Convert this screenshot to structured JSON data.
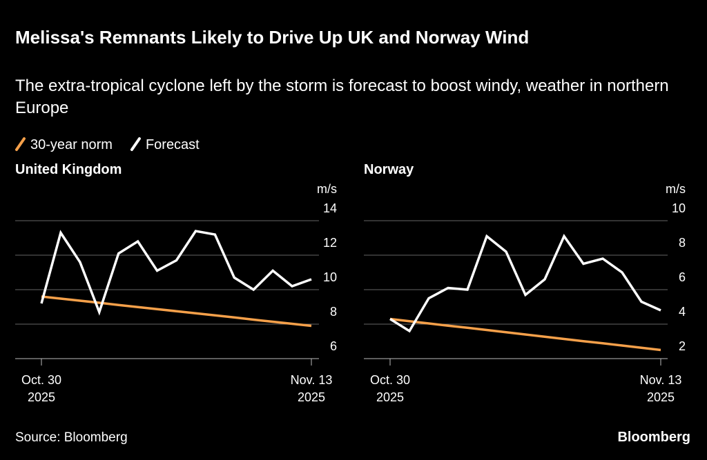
{
  "header": {
    "title": "Melissa's Remnants Likely to Drive Up UK and Norway Wind",
    "subtitle": "The extra-tropical cyclone left by the storm is forecast to boost windy, weather in northern Europe"
  },
  "footer": {
    "source": "Source: Bloomberg",
    "brand": "Bloomberg"
  },
  "chart_data": [
    {
      "type": "line",
      "title": "United Kingdom",
      "y_unit": "m/s",
      "categories": [
        "Oct. 30 2025",
        null,
        null,
        null,
        null,
        null,
        null,
        null,
        null,
        null,
        null,
        null,
        null,
        null,
        "Nov. 13 2025"
      ],
      "series": [
        {
          "name": "30-year norm",
          "color": "#f5a04a",
          "values": [
            9.6,
            9.48,
            9.36,
            9.24,
            9.11,
            8.99,
            8.87,
            8.75,
            8.63,
            8.51,
            8.39,
            8.26,
            8.14,
            8.02,
            7.9
          ]
        },
        {
          "name": "Forecast",
          "color": "#ffffff",
          "values": [
            9.2,
            13.3,
            11.6,
            8.7,
            12.1,
            12.8,
            11.1,
            11.7,
            13.4,
            13.2,
            10.7,
            10.0,
            11.1,
            10.2,
            10.6
          ]
        }
      ],
      "ylim": [
        6,
        14
      ],
      "yticks": [
        6,
        8,
        10,
        12,
        14
      ],
      "grid": true
    },
    {
      "type": "line",
      "title": "Norway",
      "y_unit": "m/s",
      "categories": [
        "Oct. 30 2025",
        null,
        null,
        null,
        null,
        null,
        null,
        null,
        null,
        null,
        null,
        null,
        null,
        null,
        "Nov. 13 2025"
      ],
      "series": [
        {
          "name": "30-year norm",
          "color": "#f5a04a",
          "values": [
            4.3,
            4.17,
            4.04,
            3.91,
            3.79,
            3.66,
            3.53,
            3.4,
            3.27,
            3.14,
            3.01,
            2.89,
            2.76,
            2.63,
            2.5
          ]
        },
        {
          "name": "Forecast",
          "color": "#ffffff",
          "values": [
            4.3,
            3.6,
            5.5,
            6.1,
            6.0,
            9.1,
            8.2,
            5.7,
            6.6,
            9.1,
            7.5,
            7.8,
            7.0,
            5.3,
            4.8
          ]
        }
      ],
      "ylim": [
        2,
        10
      ],
      "yticks": [
        2,
        4,
        6,
        8,
        10
      ],
      "grid": true
    }
  ]
}
